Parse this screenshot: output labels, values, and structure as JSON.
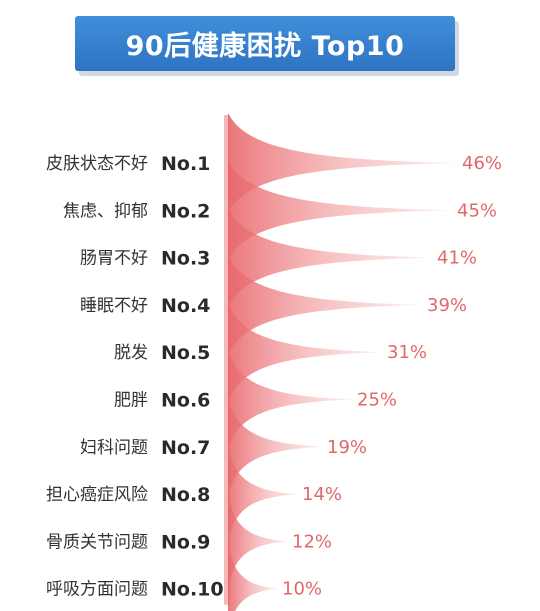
{
  "title": "90后健康困扰 Top10",
  "colors": {
    "banner": "#2f73c4",
    "fill": "#ef8f91",
    "value": "#e0686b"
  },
  "chart_data": {
    "type": "bar",
    "orientation": "horizontal",
    "title": "90后健康困扰 Top10",
    "categories": [
      "皮肤状态不好",
      "焦虑、抑郁",
      "肠胃不好",
      "睡眠不好",
      "脱发",
      "肥胖",
      "妇科问题",
      "担心癌症风险",
      "骨质关节问题",
      "呼吸方面问题"
    ],
    "ranks": [
      "No.1",
      "No.2",
      "No.3",
      "No.4",
      "No.5",
      "No.6",
      "No.7",
      "No.8",
      "No.9",
      "No.10"
    ],
    "values": [
      46,
      45,
      41,
      39,
      31,
      25,
      19,
      14,
      12,
      10
    ],
    "value_labels": [
      "46%",
      "45%",
      "41%",
      "39%",
      "31%",
      "25%",
      "19%",
      "14%",
      "12%",
      "10%"
    ],
    "unit": "%",
    "grid": false,
    "legend": "none"
  }
}
